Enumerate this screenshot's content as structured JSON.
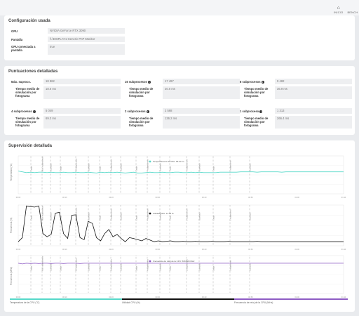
{
  "nav": [
    {
      "label": "INICIO",
      "icon": "home-icon"
    },
    {
      "label": "BENCH",
      "icon": "benchmark-icon"
    }
  ],
  "config": {
    "title": "Configuración usada",
    "rows": [
      {
        "label": "GPU",
        "value": "NVIDIA GeForce RTX 3090"
      },
      {
        "label": "Pantalla",
        "value": "\\\\.\\DISPLAY1 Generic PnP Monitor"
      },
      {
        "label": "GPU conectada a pantalla",
        "value": "true"
      }
    ]
  },
  "scores": {
    "title": "Puntuaciones detalladas",
    "items": [
      {
        "label": "Máx. suprocs.",
        "value": "18 862",
        "sublabel": "Tiempo medio de simulación por fotograma",
        "subvalue": "18.6 ms"
      },
      {
        "label": "16 subprocesos",
        "value": "17 497",
        "sublabel": "Tiempo medio de simulación por fotograma",
        "subvalue": "20.0 ms"
      },
      {
        "label": "8 subprocesos",
        "value": "9 482",
        "sublabel": "Tiempo medio de simulación por fotograma",
        "subvalue": "36.9 ms"
      },
      {
        "label": "4 subprocesos",
        "value": "5 049",
        "sublabel": "Tiempo medio de simulación por fotograma",
        "subvalue": "69.3 ms"
      },
      {
        "label": "2 subprocesos",
        "value": "2 568",
        "sublabel": "Tiempo medio de simulación por fotograma",
        "subvalue": "136.2 ms"
      },
      {
        "label": "1 subproceso",
        "value": "1 313",
        "sublabel": "Tiempo medio de simulación por fotograma",
        "subvalue": "266.4 ms"
      }
    ]
  },
  "monitoring": {
    "title": "Supervisión detallada",
    "charts": [
      {
        "ylabel": "Temperatura (°C)",
        "tooltip": "Temperatura de la CPU: 66.63 °C",
        "color": "#56d8c9",
        "y": [
          60,
          58,
          56,
          57,
          56,
          57,
          57,
          56,
          57,
          56,
          56,
          57,
          56,
          56,
          57,
          56,
          56,
          57,
          56,
          55,
          57,
          56,
          57,
          56,
          57,
          56,
          55,
          56,
          57,
          55,
          55,
          56,
          57,
          56,
          56,
          57,
          56,
          56,
          57,
          57,
          56,
          56,
          57,
          56,
          57,
          56,
          56,
          56,
          56,
          57,
          57,
          57,
          57,
          57,
          58,
          58,
          58,
          58,
          57,
          58,
          58,
          58,
          58,
          58,
          57,
          58,
          58,
          58,
          58,
          58,
          58,
          58,
          58,
          58,
          58,
          58,
          58,
          58,
          58,
          58
        ]
      },
      {
        "ylabel": "Frecuencia (%)",
        "tooltip": "Utilidad CPU: 11.06 %",
        "color": "#111111",
        "y": [
          10,
          20,
          98,
          96,
          95,
          98,
          30,
          22,
          28,
          80,
          82,
          30,
          18,
          75,
          76,
          20,
          15,
          60,
          55,
          20,
          12,
          30,
          40,
          22,
          28,
          18,
          10,
          20,
          18,
          15,
          12,
          18,
          14,
          10,
          12,
          10,
          11,
          12,
          10,
          10,
          11,
          10,
          10,
          11,
          10,
          10,
          10,
          11,
          10,
          10,
          10,
          11,
          10,
          10,
          10,
          10,
          10,
          10,
          11,
          10,
          10,
          10,
          10,
          10,
          10,
          10,
          10,
          10,
          10,
          10,
          10,
          10,
          10,
          10,
          10,
          10,
          10,
          10,
          10,
          10
        ]
      },
      {
        "ylabel": "Frecuencia (MHz)",
        "tooltip": "Frecuencia de reloj de la CPU: 5667.20 MHz",
        "color": "#8e5cc4",
        "y": [
          80,
          78,
          80,
          79,
          80,
          79,
          80,
          80,
          79,
          80,
          80,
          79,
          80,
          80,
          80,
          79,
          80,
          80,
          80,
          80,
          80,
          80,
          80,
          80,
          80,
          80,
          80,
          80,
          80,
          80,
          80,
          80,
          80,
          80,
          80,
          80,
          80,
          80,
          80,
          80,
          80,
          80,
          80,
          80,
          80,
          80,
          80,
          80,
          80,
          80,
          80,
          80,
          80,
          80,
          80,
          80,
          80,
          80,
          80,
          80,
          80,
          80,
          80,
          80,
          80,
          80,
          80,
          80,
          80,
          80,
          80,
          80,
          80,
          80,
          80,
          80,
          80,
          80,
          80,
          80
        ]
      }
    ],
    "markers": [
      "Carga",
      "Máx. subprocesos",
      "Guardado",
      "Carga",
      "16 subprocesos",
      "Guardado",
      "Carga",
      "8 subprocesos",
      "Guardado",
      "Carga",
      "4 subprocesos",
      "Guardado",
      "Carga",
      "2 subprocesos",
      "Guardado",
      "Carga",
      "1 subproceso",
      "Guardado"
    ],
    "ticks": [
      "00:00",
      "00:10",
      "00:20",
      "00:30",
      "00:40",
      "00:50",
      "01:00",
      "01:10"
    ],
    "legend": [
      {
        "label": "Temperatura de la CPU (°C)",
        "color": "#56d8c9"
      },
      {
        "label": "Utilidad CPU (%)",
        "color": "#111111"
      },
      {
        "label": "Frecuencia de reloj de la CPU (MHz)",
        "color": "#8e5cc4"
      }
    ]
  }
}
